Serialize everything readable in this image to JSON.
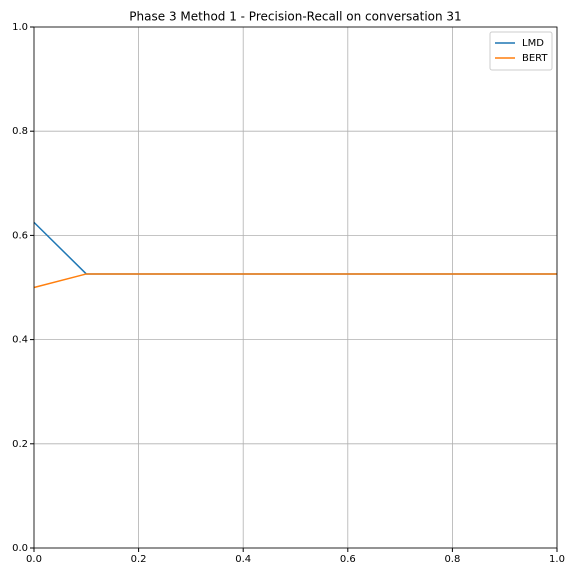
{
  "chart_data": {
    "type": "line",
    "title": "Phase 3 Method 1 - Precision-Recall on conversation 31",
    "x": [
      0,
      0.1,
      1
    ],
    "series": [
      {
        "name": "LMD",
        "color": "#1f77b4",
        "values": [
          0.625,
          0.526,
          0.526
        ]
      },
      {
        "name": "BERT",
        "color": "#ff7f0e",
        "values": [
          0.5,
          0.526,
          0.526
        ]
      }
    ],
    "xlim": [
      0,
      1
    ],
    "ylim": [
      0,
      1
    ],
    "xticks": [
      {
        "value": 0,
        "label": "0.0"
      },
      {
        "value": 0.2,
        "label": "0.2"
      },
      {
        "value": 0.4,
        "label": "0.4"
      },
      {
        "value": 0.6,
        "label": "0.6"
      },
      {
        "value": 0.8,
        "label": "0.8"
      },
      {
        "value": 1,
        "label": "1.0"
      }
    ],
    "yticks": [
      {
        "value": 0,
        "label": "0.0"
      },
      {
        "value": 0.2,
        "label": "0.2"
      },
      {
        "value": 0.4,
        "label": "0.4"
      },
      {
        "value": 0.6,
        "label": "0.6"
      },
      {
        "value": 0.8,
        "label": "0.8"
      },
      {
        "value": 1,
        "label": "1.0"
      }
    ],
    "grid": true,
    "legend": "upper-right"
  }
}
